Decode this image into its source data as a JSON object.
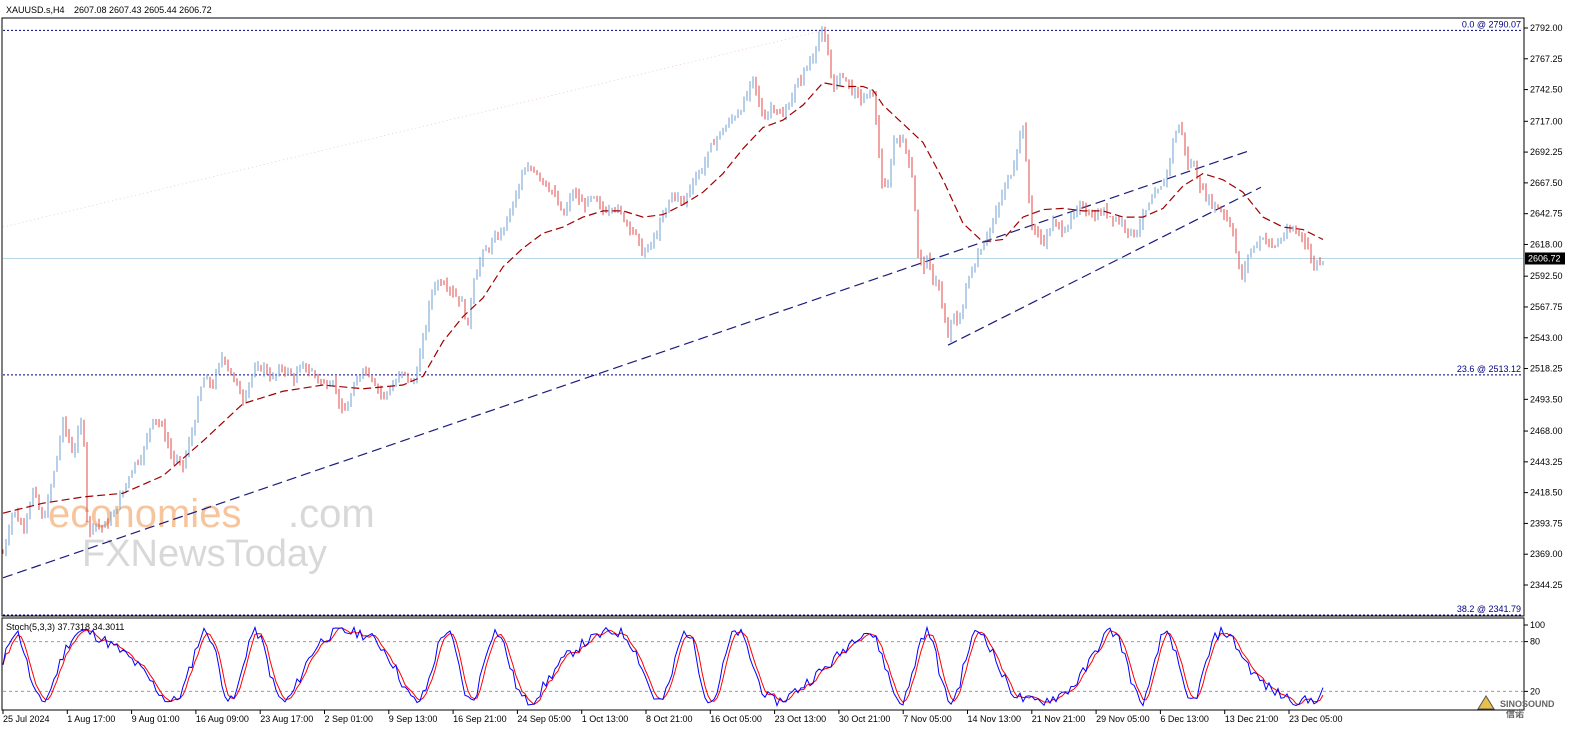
{
  "header": {
    "symbol": "XAUUSD.s,H4",
    "ohlc": "2607.08 2607.43 2605.44 2606.72"
  },
  "stoch_header": "Stoch(5,3,3) 37.7318 34.3011",
  "watermark": {
    "line1a": "economies",
    "line1b": ".com",
    "line2": "FXNewsToday"
  },
  "logo": {
    "line1": "SINOSOUND",
    "line2": "信诺"
  },
  "colors": {
    "bull": "#6f9fd0",
    "bear": "#e04848",
    "ma": "#a00000",
    "trend": "#1c1c7c",
    "stoch_main": "#0000ff",
    "stoch_signal": "#ff0000",
    "price_line": "#b8d8e8"
  },
  "chart_data": {
    "type": "candlestick",
    "timeframe": "H4",
    "current_price": 2606.72,
    "current_price_label": "2606.72",
    "y_ticks": [
      "2792.00",
      "2767.25",
      "2742.50",
      "2717.00",
      "2692.25",
      "2667.50",
      "2642.75",
      "2618.00",
      "2592.50",
      "2567.75",
      "2543.00",
      "2518.25",
      "2493.50",
      "2468.00",
      "2443.25",
      "2418.50",
      "2393.75",
      "2369.00",
      "2344.25"
    ],
    "ylim": [
      2344.25,
      2792.0
    ],
    "x_ticks": [
      "25 Jul 2024",
      "1 Aug 17:00",
      "9 Aug 01:00",
      "16 Aug 09:00",
      "23 Aug 17:00",
      "2 Sep 01:00",
      "9 Sep 13:00",
      "16 Sep 21:00",
      "24 Sep 05:00",
      "1 Oct 13:00",
      "8 Oct 21:00",
      "16 Oct 05:00",
      "23 Oct 13:00",
      "30 Oct 21:00",
      "7 Nov 05:00",
      "14 Nov 13:00",
      "21 Nov 21:00",
      "29 Nov 05:00",
      "6 Dec 13:00",
      "13 Dec 21:00",
      "23 Dec 05:00"
    ],
    "fibo_levels": [
      {
        "label": "0.0 @ 2790.07",
        "price": 2790.07
      },
      {
        "label": "23.6 @ 2513.12",
        "price": 2513.12
      },
      {
        "label": "38.2 @ 2341.79",
        "price": 2341.79
      }
    ],
    "price_path": [
      [
        0,
        2370
      ],
      [
        10,
        2405
      ],
      [
        20,
        2390
      ],
      [
        30,
        2420
      ],
      [
        40,
        2395
      ],
      [
        50,
        2430
      ],
      [
        60,
        2475
      ],
      [
        70,
        2450
      ],
      [
        80,
        2480
      ],
      [
        85,
        2380
      ],
      [
        90,
        2395
      ],
      [
        100,
        2390
      ],
      [
        110,
        2400
      ],
      [
        120,
        2420
      ],
      [
        130,
        2440
      ],
      [
        140,
        2450
      ],
      [
        150,
        2480
      ],
      [
        160,
        2470
      ],
      [
        170,
        2445
      ],
      [
        180,
        2440
      ],
      [
        190,
        2470
      ],
      [
        200,
        2510
      ],
      [
        210,
        2505
      ],
      [
        220,
        2530
      ],
      [
        230,
        2510
      ],
      [
        240,
        2495
      ],
      [
        250,
        2515
      ],
      [
        260,
        2520
      ],
      [
        270,
        2510
      ],
      [
        280,
        2520
      ],
      [
        290,
        2510
      ],
      [
        300,
        2520
      ],
      [
        310,
        2515
      ],
      [
        320,
        2505
      ],
      [
        330,
        2510
      ],
      [
        340,
        2480
      ],
      [
        350,
        2500
      ],
      [
        360,
        2520
      ],
      [
        370,
        2510
      ],
      [
        380,
        2495
      ],
      [
        390,
        2505
      ],
      [
        400,
        2515
      ],
      [
        410,
        2505
      ],
      [
        420,
        2540
      ],
      [
        430,
        2585
      ],
      [
        440,
        2590
      ],
      [
        450,
        2580
      ],
      [
        460,
        2570
      ],
      [
        465,
        2550
      ],
      [
        470,
        2590
      ],
      [
        480,
        2610
      ],
      [
        490,
        2620
      ],
      [
        500,
        2630
      ],
      [
        510,
        2650
      ],
      [
        520,
        2675
      ],
      [
        530,
        2680
      ],
      [
        540,
        2670
      ],
      [
        550,
        2660
      ],
      [
        560,
        2640
      ],
      [
        570,
        2660
      ],
      [
        580,
        2650
      ],
      [
        590,
        2655
      ],
      [
        600,
        2645
      ],
      [
        610,
        2650
      ],
      [
        620,
        2640
      ],
      [
        630,
        2630
      ],
      [
        640,
        2610
      ],
      [
        650,
        2620
      ],
      [
        660,
        2640
      ],
      [
        670,
        2660
      ],
      [
        680,
        2650
      ],
      [
        690,
        2670
      ],
      [
        700,
        2680
      ],
      [
        710,
        2700
      ],
      [
        720,
        2710
      ],
      [
        730,
        2720
      ],
      [
        740,
        2730
      ],
      [
        750,
        2750
      ],
      [
        760,
        2720
      ],
      [
        770,
        2730
      ],
      [
        780,
        2720
      ],
      [
        790,
        2740
      ],
      [
        800,
        2755
      ],
      [
        810,
        2770
      ],
      [
        815,
        2785
      ],
      [
        820,
        2787
      ],
      [
        825,
        2770
      ],
      [
        830,
        2745
      ],
      [
        840,
        2755
      ],
      [
        850,
        2740
      ],
      [
        860,
        2735
      ],
      [
        870,
        2740
      ],
      [
        875,
        2700
      ],
      [
        880,
        2660
      ],
      [
        885,
        2665
      ],
      [
        890,
        2700
      ],
      [
        895,
        2705
      ],
      [
        900,
        2700
      ],
      [
        905,
        2690
      ],
      [
        910,
        2670
      ],
      [
        915,
        2610
      ],
      [
        920,
        2600
      ],
      [
        925,
        2605
      ],
      [
        930,
        2590
      ],
      [
        935,
        2590
      ],
      [
        940,
        2560
      ],
      [
        945,
        2545
      ],
      [
        950,
        2560
      ],
      [
        955,
        2555
      ],
      [
        960,
        2570
      ],
      [
        965,
        2590
      ],
      [
        970,
        2600
      ],
      [
        980,
        2620
      ],
      [
        990,
        2635
      ],
      [
        1000,
        2660
      ],
      [
        1010,
        2680
      ],
      [
        1015,
        2700
      ],
      [
        1020,
        2715
      ],
      [
        1025,
        2660
      ],
      [
        1030,
        2630
      ],
      [
        1040,
        2620
      ],
      [
        1050,
        2635
      ],
      [
        1060,
        2630
      ],
      [
        1070,
        2640
      ],
      [
        1080,
        2650
      ],
      [
        1090,
        2640
      ],
      [
        1100,
        2645
      ],
      [
        1110,
        2640
      ],
      [
        1120,
        2635
      ],
      [
        1130,
        2625
      ],
      [
        1140,
        2640
      ],
      [
        1150,
        2655
      ],
      [
        1160,
        2665
      ],
      [
        1165,
        2680
      ],
      [
        1170,
        2700
      ],
      [
        1175,
        2715
      ],
      [
        1180,
        2705
      ],
      [
        1185,
        2680
      ],
      [
        1190,
        2685
      ],
      [
        1195,
        2670
      ],
      [
        1200,
        2660
      ],
      [
        1210,
        2650
      ],
      [
        1220,
        2645
      ],
      [
        1230,
        2630
      ],
      [
        1235,
        2600
      ],
      [
        1240,
        2590
      ],
      [
        1245,
        2610
      ],
      [
        1250,
        2615
      ],
      [
        1260,
        2625
      ],
      [
        1270,
        2615
      ],
      [
        1280,
        2625
      ],
      [
        1290,
        2630
      ],
      [
        1300,
        2625
      ],
      [
        1305,
        2615
      ],
      [
        1310,
        2600
      ],
      [
        1315,
        2605
      ],
      [
        1320,
        2606
      ]
    ],
    "ma_path": [
      [
        0,
        2402
      ],
      [
        40,
        2410
      ],
      [
        80,
        2415
      ],
      [
        120,
        2418
      ],
      [
        160,
        2432
      ],
      [
        200,
        2460
      ],
      [
        240,
        2490
      ],
      [
        280,
        2500
      ],
      [
        320,
        2505
      ],
      [
        360,
        2502
      ],
      [
        400,
        2505
      ],
      [
        420,
        2512
      ],
      [
        440,
        2540
      ],
      [
        460,
        2560
      ],
      [
        480,
        2575
      ],
      [
        500,
        2600
      ],
      [
        520,
        2615
      ],
      [
        540,
        2627
      ],
      [
        560,
        2632
      ],
      [
        580,
        2640
      ],
      [
        600,
        2645
      ],
      [
        620,
        2645
      ],
      [
        640,
        2640
      ],
      [
        660,
        2642
      ],
      [
        680,
        2650
      ],
      [
        700,
        2660
      ],
      [
        720,
        2675
      ],
      [
        740,
        2695
      ],
      [
        760,
        2712
      ],
      [
        780,
        2718
      ],
      [
        800,
        2730
      ],
      [
        820,
        2748
      ],
      [
        840,
        2745
      ],
      [
        860,
        2745
      ],
      [
        870,
        2742
      ],
      [
        880,
        2730
      ],
      [
        900,
        2715
      ],
      [
        920,
        2700
      ],
      [
        940,
        2670
      ],
      [
        960,
        2635
      ],
      [
        980,
        2620
      ],
      [
        1000,
        2622
      ],
      [
        1020,
        2640
      ],
      [
        1040,
        2646
      ],
      [
        1060,
        2647
      ],
      [
        1080,
        2645
      ],
      [
        1100,
        2645
      ],
      [
        1120,
        2640
      ],
      [
        1140,
        2640
      ],
      [
        1160,
        2647
      ],
      [
        1180,
        2665
      ],
      [
        1200,
        2675
      ],
      [
        1220,
        2670
      ],
      [
        1240,
        2660
      ],
      [
        1260,
        2640
      ],
      [
        1280,
        2632
      ],
      [
        1300,
        2630
      ],
      [
        1320,
        2622
      ]
    ],
    "trendlines": [
      {
        "style": "dashed",
        "points": [
          [
            0,
            2350
          ],
          [
            1245,
            2693
          ]
        ]
      },
      {
        "style": "dashed",
        "points": [
          [
            945,
            2537
          ],
          [
            1258,
            2664
          ]
        ]
      },
      {
        "style": "dotted-light",
        "points": [
          [
            0,
            2632
          ],
          [
            820,
            2790
          ]
        ]
      }
    ],
    "stoch": {
      "params": "5,3,3",
      "main": 37.7318,
      "signal": 34.3011,
      "levels": [
        20,
        80
      ],
      "y_ticks": [
        "100",
        "80",
        "20"
      ],
      "ylim": [
        0,
        100
      ]
    }
  }
}
